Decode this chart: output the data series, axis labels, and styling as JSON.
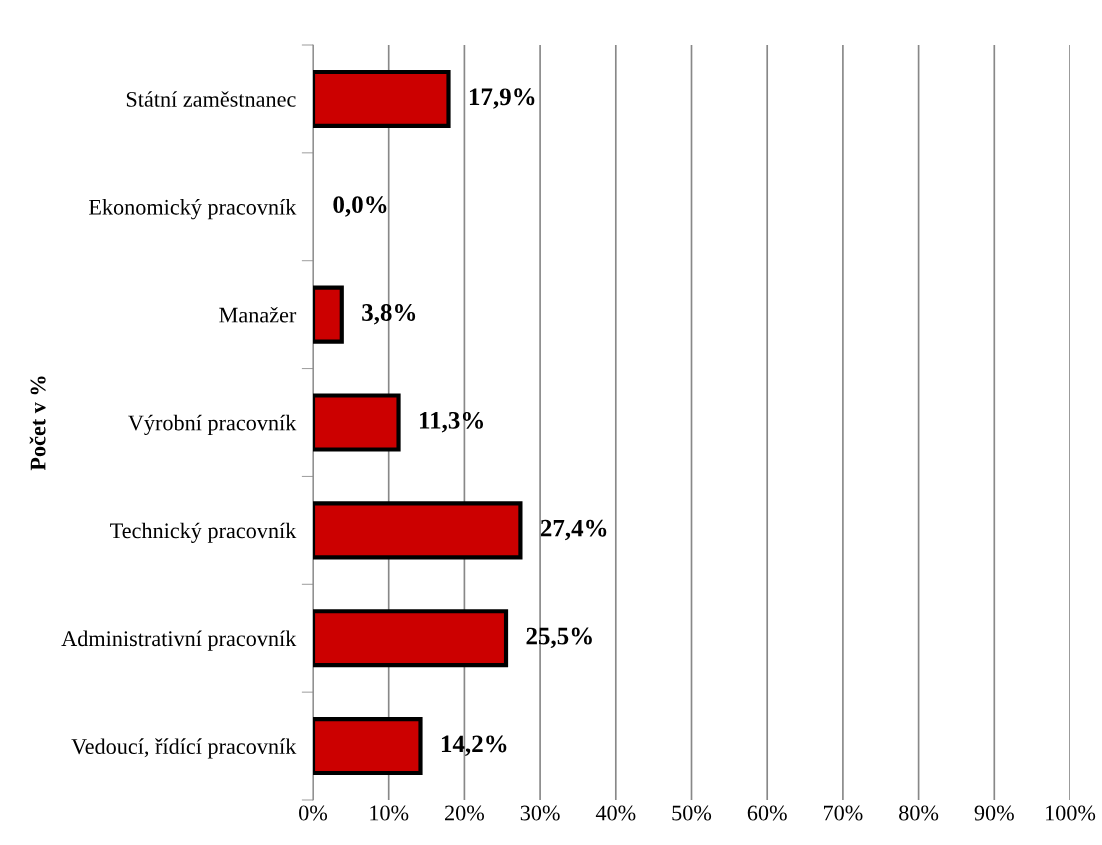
{
  "chart_data": {
    "type": "bar",
    "orientation": "horizontal",
    "ylabel": "Počet v %",
    "categories": [
      "Státní zaměstnanec",
      "Ekonomický pracovník",
      "Manažer",
      "Výrobní pracovník",
      "Technický pracovník",
      "Administrativní pracovník",
      "Vedoucí, řídící pracovník"
    ],
    "values": [
      17.9,
      0.0,
      3.8,
      11.3,
      27.4,
      25.5,
      14.2
    ],
    "value_labels": [
      "17,9%",
      "0,0%",
      "3,8%",
      "11,3%",
      "27,4%",
      "25,5%",
      "14,2%"
    ],
    "color": "#cc0000",
    "xlim": [
      0,
      100
    ],
    "xticks": [
      {
        "value": 0,
        "label": "0%"
      },
      {
        "value": 10,
        "label": "10%"
      },
      {
        "value": 20,
        "label": "20%"
      },
      {
        "value": 30,
        "label": "30%"
      },
      {
        "value": 40,
        "label": "40%"
      },
      {
        "value": 50,
        "label": "50%"
      },
      {
        "value": 60,
        "label": "60%"
      },
      {
        "value": 70,
        "label": "70%"
      },
      {
        "value": 80,
        "label": "80%"
      },
      {
        "value": 90,
        "label": "90%"
      },
      {
        "value": 100,
        "label": "100%"
      }
    ],
    "grid": "x",
    "legend": false
  }
}
